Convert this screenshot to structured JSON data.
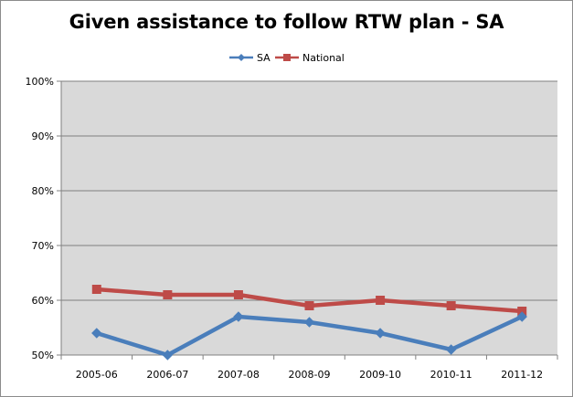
{
  "chart_data": {
    "type": "line",
    "title": "Given assistance to follow RTW plan - SA",
    "xlabel": "",
    "ylabel": "",
    "categories": [
      "2005-06",
      "2006-07",
      "2007-08",
      "2008-09",
      "2009-10",
      "2010-11",
      "2011-12"
    ],
    "ylim": [
      50,
      100
    ],
    "yticks": [
      "50%",
      "60%",
      "70%",
      "80%",
      "90%",
      "100%"
    ],
    "grid": true,
    "legend_position": "top",
    "series": [
      {
        "name": "SA",
        "values": [
          54,
          50,
          57,
          56,
          54,
          51,
          57
        ],
        "color": "#4a7ebb",
        "marker": "diamond"
      },
      {
        "name": "National",
        "values": [
          62,
          61,
          61,
          59,
          60,
          59,
          58
        ],
        "color": "#be4b48",
        "marker": "square"
      }
    ],
    "plot_background": "#d9d9d9"
  }
}
